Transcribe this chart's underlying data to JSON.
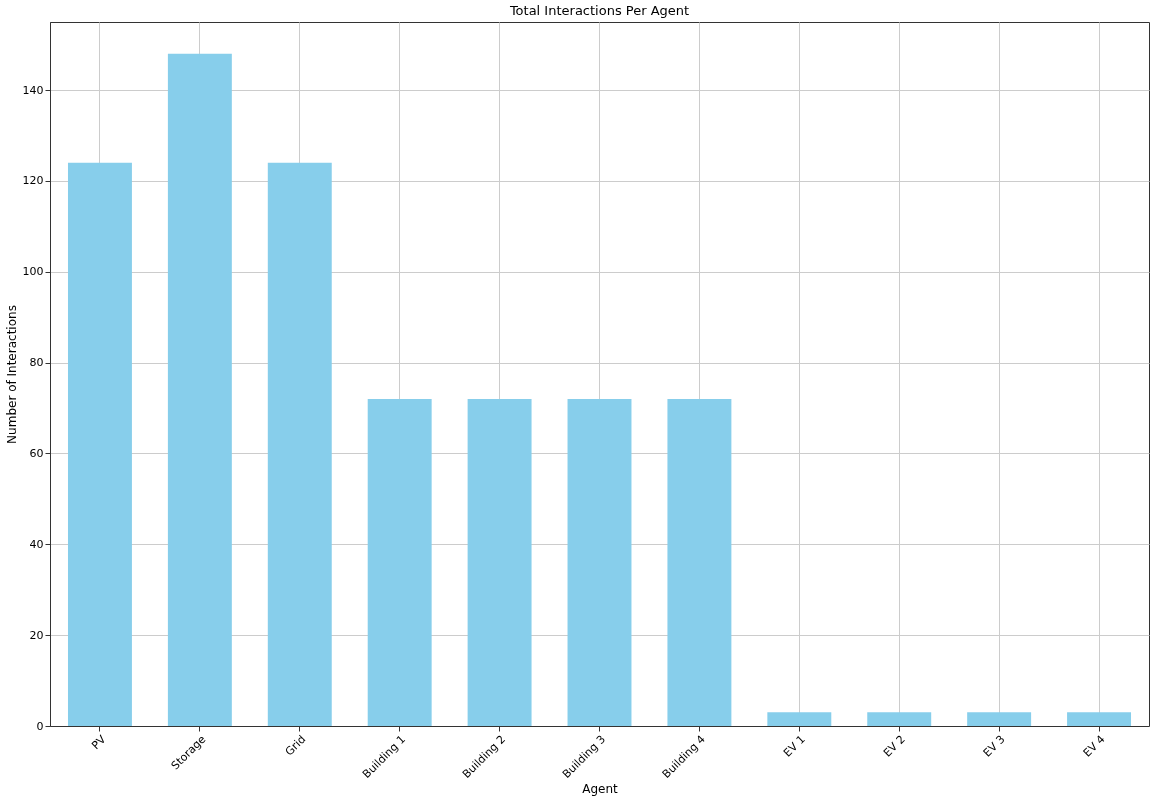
{
  "chart_data": {
    "type": "bar",
    "title": "Total Interactions Per Agent",
    "xlabel": "Agent",
    "ylabel": "Number of Interactions",
    "categories": [
      "PV",
      "Storage",
      "Grid",
      "Building 1",
      "Building 2",
      "Building 3",
      "Building 4",
      "EV 1",
      "EV 2",
      "EV 3",
      "EV 4"
    ],
    "values": [
      124,
      148,
      124,
      72,
      72,
      72,
      72,
      3,
      3,
      3,
      3
    ],
    "color": "#87ceeb",
    "ylim": [
      0,
      155
    ],
    "yticks": [
      0,
      20,
      40,
      60,
      80,
      100,
      120,
      140
    ],
    "grid": true
  }
}
